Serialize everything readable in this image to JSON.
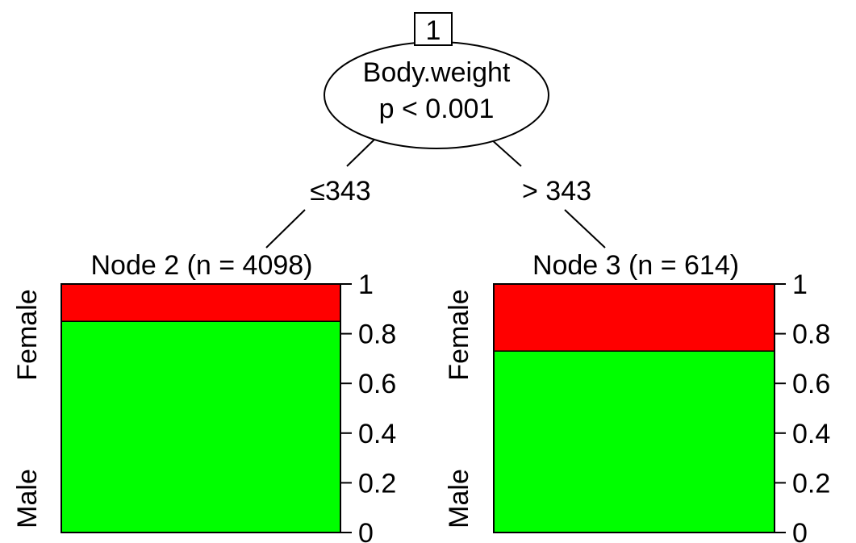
{
  "tree": {
    "root": {
      "id_label": "1",
      "variable": "Body.weight",
      "p_value": "p < 0.001"
    },
    "edges": [
      {
        "label": "≤343"
      },
      {
        "label": "> 343"
      }
    ],
    "leaves": [
      {
        "title": "Node 2 (n = 4098)",
        "y_labels": {
          "top": "Female",
          "bottom": "Male"
        },
        "female_fraction": 0.15,
        "male_fraction": 0.85
      },
      {
        "title": "Node 3 (n = 614)",
        "y_labels": {
          "top": "Female",
          "bottom": "Male"
        },
        "female_fraction": 0.27,
        "male_fraction": 0.73
      }
    ],
    "axis_ticks": [
      "1",
      "0.8",
      "0.6",
      "0.4",
      "0.2",
      "0"
    ],
    "colors": {
      "female": "#ff0000",
      "male": "#00ff00",
      "line": "#000000"
    }
  }
}
